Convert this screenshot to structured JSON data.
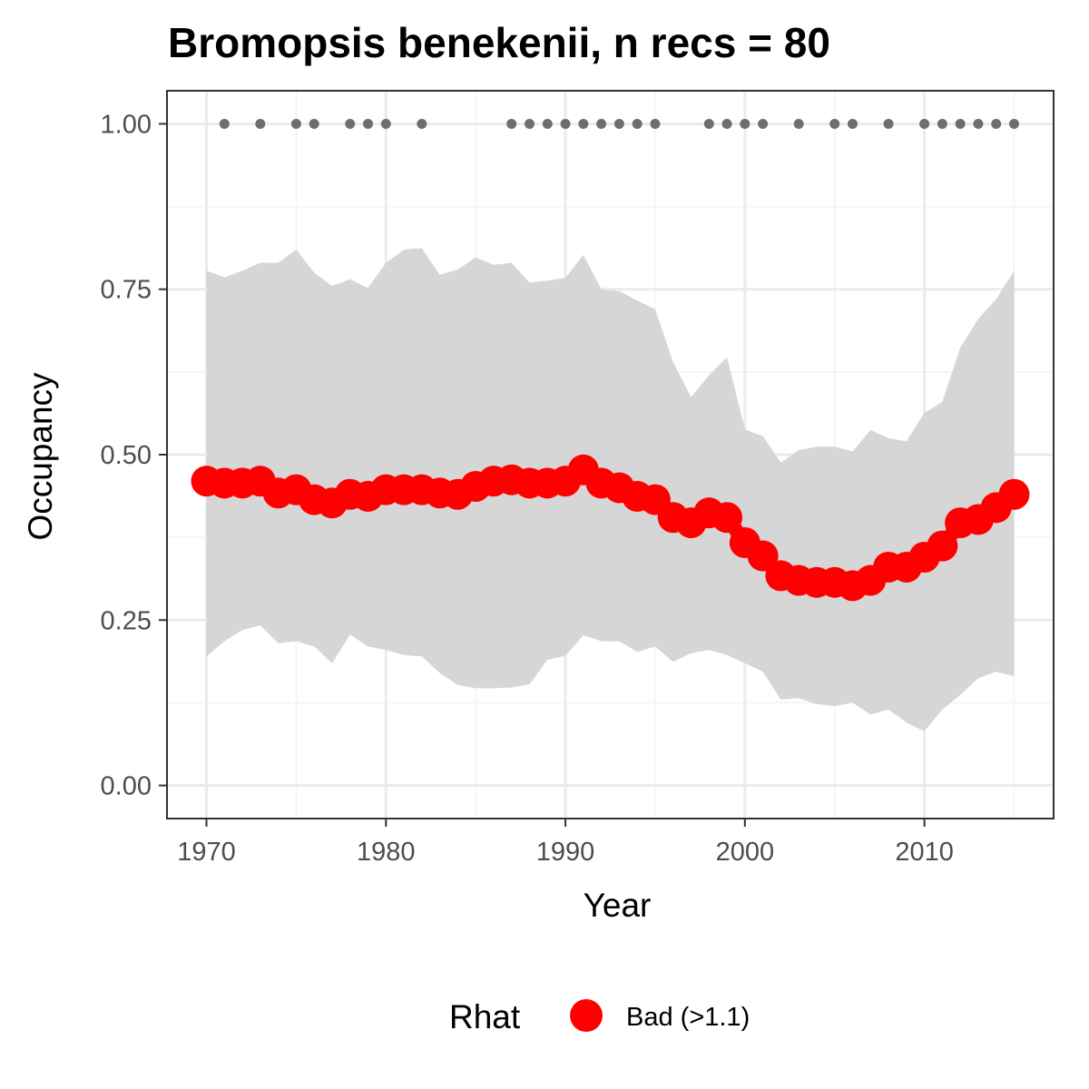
{
  "chart_data": {
    "type": "line",
    "title": "Bromopsis benekenii, n recs = 80",
    "xlabel": "Year",
    "ylabel": "Occupancy",
    "xlim": [
      1967.8,
      2017.2
    ],
    "ylim": [
      -0.05,
      1.05
    ],
    "x_ticks": [
      1970,
      1980,
      1990,
      2000,
      2010
    ],
    "y_ticks": [
      0.0,
      0.25,
      0.5,
      0.75,
      1.0
    ],
    "y_tick_labels": [
      "0.00",
      "0.25",
      "0.50",
      "0.75",
      "1.00"
    ],
    "grid": true,
    "series": [
      {
        "name": "Occupancy",
        "color": "#ff0000",
        "x": [
          1970,
          1971,
          1972,
          1973,
          1974,
          1975,
          1976,
          1977,
          1978,
          1979,
          1980,
          1981,
          1982,
          1983,
          1984,
          1985,
          1986,
          1987,
          1988,
          1989,
          1990,
          1991,
          1992,
          1993,
          1994,
          1995,
          1996,
          1997,
          1998,
          1999,
          2000,
          2001,
          2002,
          2003,
          2004,
          2005,
          2006,
          2007,
          2008,
          2009,
          2010,
          2011,
          2012,
          2013,
          2014,
          2015
        ],
        "y": [
          0.46,
          0.457,
          0.457,
          0.46,
          0.442,
          0.447,
          0.432,
          0.427,
          0.44,
          0.437,
          0.447,
          0.447,
          0.447,
          0.442,
          0.44,
          0.452,
          0.46,
          0.462,
          0.457,
          0.457,
          0.46,
          0.477,
          0.457,
          0.45,
          0.437,
          0.432,
          0.405,
          0.397,
          0.412,
          0.405,
          0.367,
          0.347,
          0.317,
          0.31,
          0.307,
          0.307,
          0.302,
          0.31,
          0.33,
          0.33,
          0.345,
          0.362,
          0.397,
          0.402,
          0.42,
          0.44
        ],
        "lower": [
          0.195,
          0.218,
          0.235,
          0.242,
          0.215,
          0.218,
          0.21,
          0.185,
          0.228,
          0.21,
          0.205,
          0.197,
          0.195,
          0.17,
          0.152,
          0.147,
          0.147,
          0.148,
          0.153,
          0.19,
          0.196,
          0.227,
          0.218,
          0.218,
          0.202,
          0.21,
          0.187,
          0.2,
          0.205,
          0.197,
          0.185,
          0.172,
          0.13,
          0.132,
          0.123,
          0.12,
          0.125,
          0.107,
          0.115,
          0.095,
          0.082,
          0.115,
          0.137,
          0.162,
          0.172,
          0.165
        ],
        "upper": [
          0.778,
          0.768,
          0.778,
          0.79,
          0.79,
          0.81,
          0.775,
          0.755,
          0.765,
          0.752,
          0.79,
          0.81,
          0.812,
          0.772,
          0.78,
          0.798,
          0.787,
          0.79,
          0.76,
          0.763,
          0.767,
          0.802,
          0.75,
          0.747,
          0.733,
          0.72,
          0.64,
          0.587,
          0.62,
          0.647,
          0.538,
          0.528,
          0.488,
          0.507,
          0.512,
          0.512,
          0.505,
          0.537,
          0.525,
          0.52,
          0.563,
          0.58,
          0.662,
          0.705,
          0.735,
          0.778
        ]
      }
    ],
    "record_years": [
      1971,
      1973,
      1975,
      1976,
      1978,
      1979,
      1980,
      1982,
      1987,
      1988,
      1989,
      1990,
      1991,
      1992,
      1993,
      1994,
      1995,
      1998,
      1999,
      2000,
      2001,
      2003,
      2005,
      2006,
      2008,
      2010,
      2011,
      2012,
      2013,
      2014,
      2015
    ],
    "record_value": 1.0,
    "record_color": "#6e6e6e",
    "band_color": "#d6d6d6",
    "legend": {
      "title": "Rhat",
      "entries": [
        {
          "label": "Bad (>1.1)",
          "color": "#ff0000"
        }
      ],
      "position": "bottom"
    }
  }
}
